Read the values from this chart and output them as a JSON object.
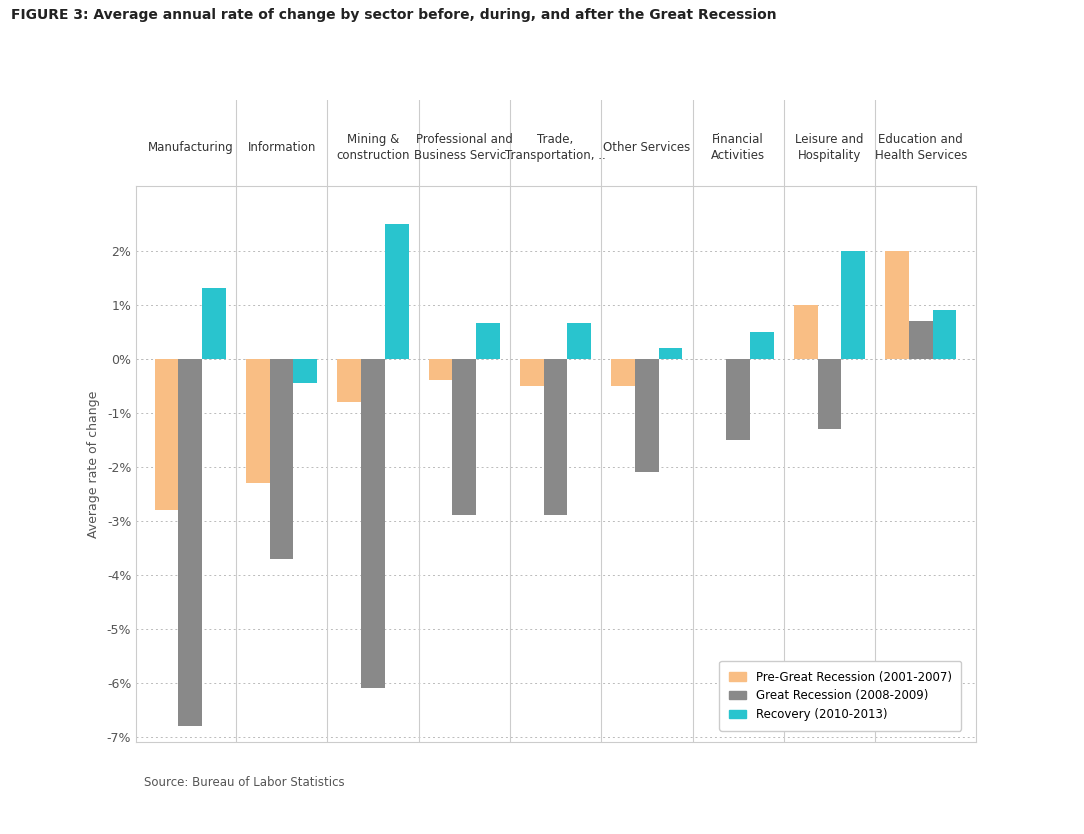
{
  "title": "FIGURE 3: Average annual rate of change by sector before, during, and after the Great Recession",
  "sectors": [
    "Manufacturing",
    "Information",
    "Mining &\nconstruction",
    "Professional and\nBusiness Servic..",
    "Trade,\nTransportation, ..",
    "Other Services",
    "Financial\nActivities",
    "Leisure and\nHospitality",
    "Education and\nHealth Services"
  ],
  "pre": [
    -2.8,
    -2.3,
    -0.8,
    -0.4,
    -0.5,
    -0.5,
    0.0,
    1.0,
    2.0
  ],
  "during": [
    -6.8,
    -3.7,
    -6.1,
    -2.9,
    -2.9,
    -2.1,
    -1.5,
    -1.3,
    0.7
  ],
  "recovery": [
    1.3,
    -0.45,
    2.5,
    0.65,
    0.65,
    0.2,
    0.5,
    2.0,
    0.9
  ],
  "color_pre": "#F9BE84",
  "color_during": "#898989",
  "color_recovery": "#29C4CE",
  "ylabel": "Average rate of change",
  "source": "Source: Bureau of Labor Statistics",
  "legend_labels": [
    "Pre-Great Recession (2001-2007)",
    "Great Recession (2008-2009)",
    "Recovery (2010-2013)"
  ],
  "ylim": [
    -7.1,
    3.2
  ],
  "yticks": [
    -7,
    -6,
    -5,
    -4,
    -3,
    -2,
    -1,
    0,
    1,
    2
  ],
  "ytick_labels": [
    "-7%",
    "-6%",
    "-5%",
    "-4%",
    "-3%",
    "-2%",
    "-1%",
    "0%",
    "1%",
    "2%"
  ]
}
